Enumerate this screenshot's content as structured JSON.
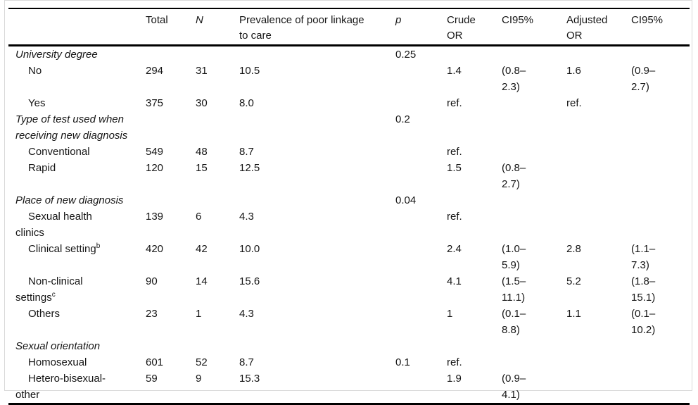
{
  "table": {
    "columns": {
      "label": "",
      "total": "Total",
      "n": "N",
      "prevalence": "Prevalence of poor linkage\nto care",
      "p": "p",
      "crude_or": "Crude\nOR",
      "ci95_1": "CI95%",
      "adjusted_or": "Adjusted\nOR",
      "ci95_2": "CI95%"
    },
    "rows": [
      {
        "type": "section",
        "label": "University degree",
        "p": "0.25"
      },
      {
        "type": "item",
        "label": "No",
        "total": "294",
        "n": "31",
        "prevalence": "10.5",
        "crude_or": "1.4",
        "ci95_1": "(0.8–\n2.3)",
        "adjusted_or": "1.6",
        "ci95_2": "(0.9–\n2.7)"
      },
      {
        "type": "item",
        "label": "Yes",
        "total": "375",
        "n": "30",
        "prevalence": "8.0",
        "crude_or": "ref.",
        "adjusted_or": "ref."
      },
      {
        "type": "section",
        "label": "Type of test used when receiving new diagnosis",
        "p": "0.2"
      },
      {
        "type": "item",
        "label": "Conventional",
        "total": "549",
        "n": "48",
        "prevalence": "8.7",
        "crude_or": "ref."
      },
      {
        "type": "item",
        "label": "Rapid",
        "total": "120",
        "n": "15",
        "prevalence": "12.5",
        "crude_or": "1.5",
        "ci95_1": "(0.8–\n2.7)"
      },
      {
        "type": "section",
        "label": "Place of new diagnosis",
        "p": "0.04"
      },
      {
        "type": "item",
        "label": "Sexual health\nclinics",
        "total": "139",
        "n": "6",
        "prevalence": "4.3",
        "crude_or": "ref."
      },
      {
        "type": "item",
        "label": "Clinical setting",
        "label_sup": "b",
        "total": "420",
        "n": "42",
        "prevalence": "10.0",
        "crude_or": "2.4",
        "ci95_1": "(1.0–\n5.9)",
        "adjusted_or": "2.8",
        "ci95_2": "(1.1–\n7.3)"
      },
      {
        "type": "item",
        "label": "Non-clinical\nsettings",
        "label_sup": "c",
        "total": "90",
        "n": "14",
        "prevalence": "15.6",
        "crude_or": "4.1",
        "ci95_1": "(1.5–\n11.1)",
        "adjusted_or": "5.2",
        "ci95_2": "(1.8–\n15.1)"
      },
      {
        "type": "item",
        "label": "Others",
        "total": "23",
        "n": "1",
        "prevalence": "4.3",
        "crude_or": "1",
        "ci95_1": "(0.1–\n8.8)",
        "adjusted_or": "1.1",
        "ci95_2": "(0.1–\n10.2)"
      },
      {
        "type": "section",
        "label": "Sexual orientation"
      },
      {
        "type": "item",
        "label": "Homosexual",
        "total": "601",
        "n": "52",
        "prevalence": "8.7",
        "p": "0.1",
        "crude_or": "ref."
      },
      {
        "type": "item",
        "label": "Hetero-bisexual-\nother",
        "total": "59",
        "n": "9",
        "prevalence": "15.3",
        "crude_or": "1.9",
        "ci95_1": "(0.9–\n4.1)"
      }
    ]
  }
}
